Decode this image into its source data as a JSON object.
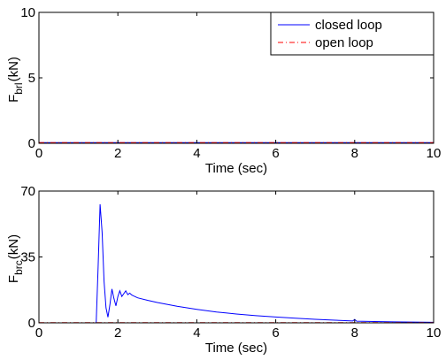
{
  "chart_data": [
    {
      "type": "line",
      "xlabel": "Time (sec)",
      "ylabel": {
        "main": "F",
        "sub": "brl",
        "unit": "(kN)"
      },
      "xlim": [
        0,
        10
      ],
      "ylim": [
        0,
        10
      ],
      "xticks": [
        "0",
        "2",
        "4",
        "6",
        "8",
        "10"
      ],
      "yticks": [
        "0",
        "5",
        "10"
      ],
      "legend": {
        "position": "top-right",
        "entries": [
          "closed loop",
          "open loop"
        ]
      },
      "series": [
        {
          "name": "closed loop",
          "color": "#0000ff",
          "style": "solid",
          "x": [
            0,
            10
          ],
          "y": [
            0.05,
            0.05
          ]
        },
        {
          "name": "open loop",
          "color": "#ff0000",
          "style": "dashdot",
          "x": [
            0,
            10
          ],
          "y": [
            0.05,
            0.05
          ]
        }
      ]
    },
    {
      "type": "line",
      "xlabel": "Time (sec)",
      "ylabel": {
        "main": "F",
        "sub": "brc",
        "unit": "(kN)"
      },
      "xlim": [
        0,
        10
      ],
      "ylim": [
        0,
        70
      ],
      "xticks": [
        "0",
        "2",
        "4",
        "6",
        "8",
        "10"
      ],
      "yticks": [
        "0",
        "35",
        "70"
      ],
      "series": [
        {
          "name": "closed loop",
          "color": "#0000ff",
          "style": "solid",
          "x": [
            0,
            1.45,
            1.5,
            1.55,
            1.6,
            1.65,
            1.7,
            1.75,
            1.8,
            1.85,
            1.9,
            1.95,
            2.0,
            2.05,
            2.1,
            2.15,
            2.2,
            2.25,
            2.3,
            2.35,
            2.4,
            2.5,
            2.75,
            3.0,
            3.5,
            4.0,
            4.5,
            5.0,
            5.5,
            6.0,
            6.5,
            7.0,
            7.5,
            7.95,
            8.0,
            8.05,
            8.5,
            9.0,
            9.5,
            10.0
          ],
          "y": [
            0,
            0,
            30,
            63,
            48,
            22,
            8,
            3,
            10,
            18,
            13,
            9,
            14,
            17,
            14,
            15.5,
            17,
            15,
            15.8,
            14.8,
            14.3,
            13.3,
            12.0,
            10.8,
            8.8,
            7.2,
            5.8,
            4.7,
            3.8,
            3.1,
            2.5,
            1.9,
            1.4,
            1.0,
            1.8,
            0.9,
            0.7,
            0.5,
            0.4,
            0.3
          ]
        },
        {
          "name": "open loop",
          "color": "#ff0000",
          "style": "dashdot",
          "x": [
            0,
            10
          ],
          "y": [
            0.1,
            0.1
          ]
        }
      ]
    }
  ]
}
